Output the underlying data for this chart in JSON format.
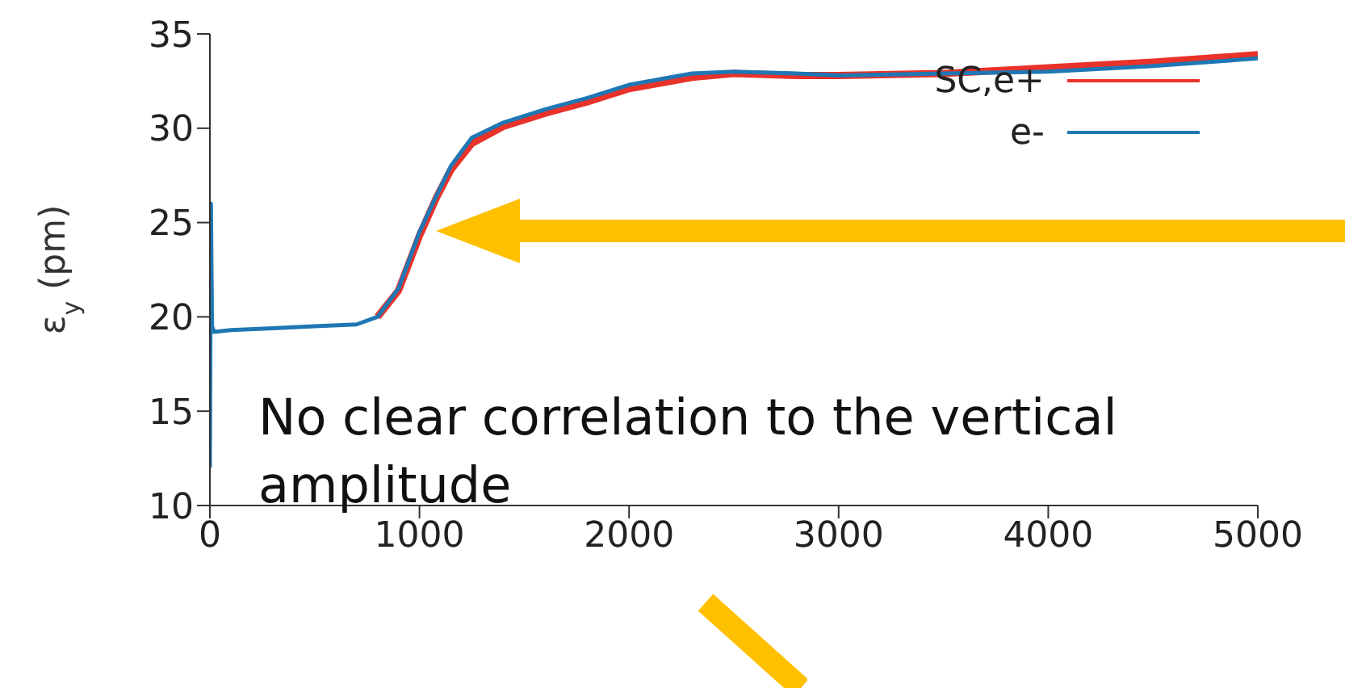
{
  "chart_data": {
    "type": "line",
    "ylabel": "ε$_{y}$ (pm)",
    "xlim": [
      0,
      5000
    ],
    "ylim": [
      10,
      35
    ],
    "xticks": [
      0,
      1000,
      2000,
      3000,
      4000,
      5000
    ],
    "yticks": [
      10,
      15,
      20,
      25,
      30,
      35
    ],
    "legend": "top right",
    "grid": false,
    "marker": "none",
    "line_style": "solid",
    "annotations": [
      "No clear correlation to the vertical amplitude"
    ],
    "x": [
      0,
      5,
      10,
      20,
      100,
      300,
      500,
      700,
      800,
      900,
      1000,
      1080,
      1150,
      1250,
      1400,
      1600,
      1800,
      2000,
      2300,
      2500,
      2800,
      3000,
      3500,
      4000,
      4500,
      5000
    ],
    "series": [
      {
        "name": "SC,e+",
        "color": "#e8322a",
        "values": [
          null,
          null,
          null,
          null,
          null,
          null,
          null,
          null,
          20,
          21.4,
          24.3,
          26.3,
          27.8,
          29.2,
          30.1,
          30.8,
          31.4,
          32.1,
          32.7,
          32.9,
          32.8,
          32.8,
          32.9,
          33.2,
          33.5,
          33.9
        ]
      },
      {
        "name": "e-",
        "color": "#1f77b4",
        "values": [
          12,
          26,
          19.5,
          19.2,
          19.3,
          19.4,
          19.5,
          19.6,
          20,
          21.5,
          24.5,
          26.4,
          28,
          29.5,
          30.3,
          31,
          31.6,
          32.3,
          32.9,
          33,
          32.9,
          32.8,
          32.9,
          33,
          33.3,
          33.7
        ]
      }
    ]
  }
}
